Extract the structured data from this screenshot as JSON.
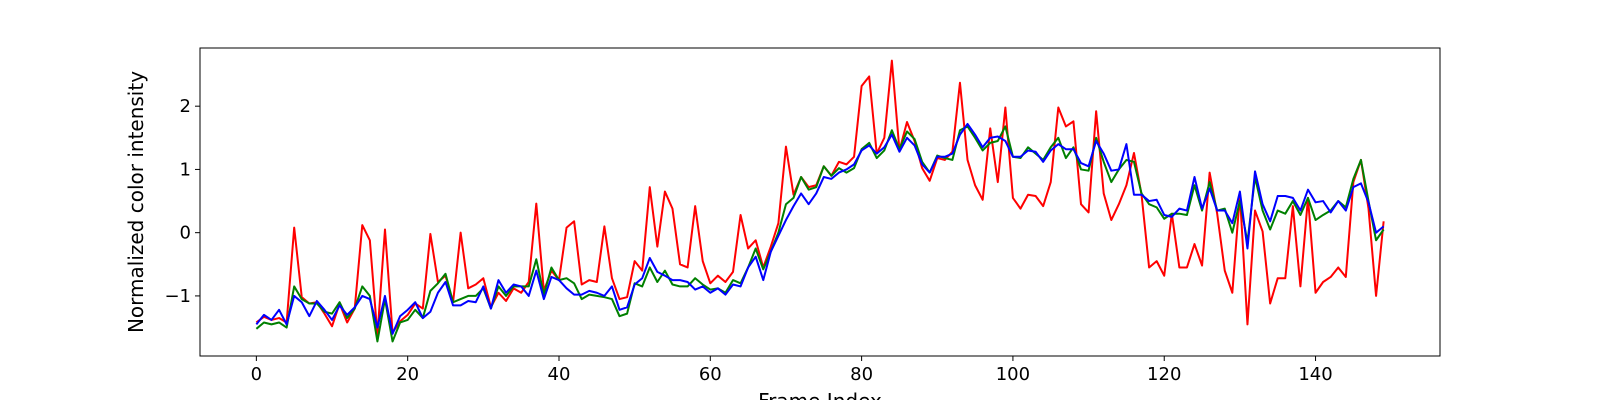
{
  "chart_data": {
    "type": "line",
    "title": "",
    "xlabel": "Frame Index",
    "ylabel": "Normalized color intensity",
    "xlim": [
      -7.45,
      156.45
    ],
    "ylim": [
      -1.95,
      2.92
    ],
    "xticks": [
      0,
      20,
      40,
      60,
      80,
      100,
      120,
      140
    ],
    "yticks": [
      -1,
      0,
      1,
      2
    ],
    "xtick_labels": [
      "0",
      "20",
      "40",
      "60",
      "80",
      "100",
      "120",
      "140"
    ],
    "ytick_labels": [
      "−1",
      "0",
      "1",
      "2"
    ],
    "grid": false,
    "legend": "none",
    "x": [
      0,
      1,
      2,
      3,
      4,
      5,
      6,
      7,
      8,
      9,
      10,
      11,
      12,
      13,
      14,
      15,
      16,
      17,
      18,
      19,
      20,
      21,
      22,
      23,
      24,
      25,
      26,
      27,
      28,
      29,
      30,
      31,
      32,
      33,
      34,
      35,
      36,
      37,
      38,
      39,
      40,
      41,
      42,
      43,
      44,
      45,
      46,
      47,
      48,
      49,
      50,
      51,
      52,
      53,
      54,
      55,
      56,
      57,
      58,
      59,
      60,
      61,
      62,
      63,
      64,
      65,
      66,
      67,
      68,
      69,
      70,
      71,
      72,
      73,
      74,
      75,
      76,
      77,
      78,
      79,
      80,
      81,
      82,
      83,
      84,
      85,
      86,
      87,
      88,
      89,
      90,
      91,
      92,
      93,
      94,
      95,
      96,
      97,
      98,
      99,
      100,
      101,
      102,
      103,
      104,
      105,
      106,
      107,
      108,
      109,
      110,
      111,
      112,
      113,
      114,
      115,
      116,
      117,
      118,
      119,
      120,
      121,
      122,
      123,
      124,
      125,
      126,
      127,
      128,
      129,
      130,
      131,
      132,
      133,
      134,
      135,
      136,
      137,
      138,
      139,
      140,
      141,
      142,
      143,
      144,
      145,
      146,
      147,
      148,
      149
    ],
    "series": [
      {
        "color": "#ff0000",
        "values": [
          -1.42,
          -1.33,
          -1.38,
          -1.35,
          -1.42,
          0.08,
          -1.02,
          -1.12,
          -1.1,
          -1.28,
          -1.48,
          -1.12,
          -1.42,
          -1.2,
          0.12,
          -0.12,
          -1.62,
          0.05,
          -1.58,
          -1.4,
          -1.3,
          -1.12,
          -1.2,
          -0.02,
          -0.78,
          -0.68,
          -1.1,
          0.0,
          -0.88,
          -0.82,
          -0.72,
          -1.18,
          -0.95,
          -1.08,
          -0.88,
          -0.95,
          -0.78,
          0.46,
          -0.92,
          -0.6,
          -0.75,
          0.08,
          0.18,
          -0.82,
          -0.75,
          -0.78,
          0.1,
          -0.72,
          -1.05,
          -1.02,
          -0.45,
          -0.6,
          0.72,
          -0.22,
          0.65,
          0.38,
          -0.5,
          -0.55,
          0.42,
          -0.45,
          -0.8,
          -0.68,
          -0.78,
          -0.62,
          0.28,
          -0.25,
          -0.12,
          -0.55,
          -0.22,
          0.15,
          1.36,
          0.6,
          0.88,
          0.72,
          0.75,
          1.05,
          0.9,
          1.12,
          1.08,
          1.2,
          2.32,
          2.47,
          1.25,
          1.5,
          2.72,
          1.3,
          1.75,
          1.45,
          1.02,
          0.82,
          1.18,
          1.15,
          1.28,
          2.37,
          1.15,
          0.75,
          0.52,
          1.65,
          0.8,
          1.98,
          0.55,
          0.38,
          0.6,
          0.58,
          0.42,
          0.8,
          1.98,
          1.68,
          1.76,
          0.45,
          0.32,
          1.92,
          0.62,
          0.2,
          0.45,
          0.75,
          1.26,
          0.6,
          -0.55,
          -0.45,
          -0.68,
          0.3,
          -0.55,
          -0.55,
          -0.18,
          -0.52,
          0.95,
          0.3,
          -0.6,
          -0.95,
          0.6,
          -1.45,
          0.35,
          0.02,
          -1.12,
          -0.72,
          -0.72,
          0.42,
          -0.85,
          0.55,
          -0.95,
          -0.78,
          -0.7,
          -0.55,
          -0.7,
          0.8,
          1.15,
          0.38,
          -1.0,
          0.18
        ]
      },
      {
        "color": "#008000",
        "values": [
          -1.52,
          -1.42,
          -1.45,
          -1.42,
          -1.5,
          -0.85,
          -1.05,
          -1.12,
          -1.12,
          -1.25,
          -1.28,
          -1.1,
          -1.35,
          -1.2,
          -0.85,
          -1.0,
          -1.72,
          -1.05,
          -1.72,
          -1.42,
          -1.38,
          -1.22,
          -1.35,
          -0.92,
          -0.8,
          -0.65,
          -1.1,
          -1.05,
          -1.0,
          -1.0,
          -0.88,
          -1.2,
          -0.85,
          -1.0,
          -0.85,
          -0.85,
          -0.85,
          -0.42,
          -0.98,
          -0.55,
          -0.75,
          -0.72,
          -0.8,
          -1.05,
          -0.98,
          -1.0,
          -1.02,
          -1.05,
          -1.32,
          -1.28,
          -0.8,
          -0.85,
          -0.55,
          -0.78,
          -0.6,
          -0.82,
          -0.85,
          -0.85,
          -0.72,
          -0.82,
          -0.9,
          -0.88,
          -0.95,
          -0.75,
          -0.8,
          -0.55,
          -0.25,
          -0.58,
          -0.3,
          0.0,
          0.45,
          0.55,
          0.88,
          0.68,
          0.72,
          1.05,
          0.9,
          1.02,
          0.95,
          1.02,
          1.32,
          1.42,
          1.18,
          1.3,
          1.62,
          1.32,
          1.6,
          1.48,
          1.12,
          0.95,
          1.22,
          1.18,
          1.15,
          1.62,
          1.68,
          1.5,
          1.3,
          1.42,
          1.45,
          1.68,
          1.2,
          1.18,
          1.35,
          1.25,
          1.15,
          1.35,
          1.5,
          1.18,
          1.35,
          1.0,
          0.98,
          1.5,
          1.12,
          0.8,
          1.0,
          1.15,
          1.12,
          0.62,
          0.45,
          0.4,
          0.22,
          0.3,
          0.3,
          0.28,
          0.75,
          0.35,
          0.8,
          0.35,
          0.38,
          0.0,
          0.5,
          -0.15,
          0.88,
          0.35,
          0.05,
          0.35,
          0.3,
          0.5,
          0.28,
          0.55,
          0.2,
          0.28,
          0.35,
          0.5,
          0.4,
          0.85,
          1.15,
          0.5,
          -0.12,
          0.05
        ]
      },
      {
        "color": "#0000ff",
        "values": [
          -1.45,
          -1.3,
          -1.38,
          -1.22,
          -1.45,
          -1.0,
          -1.1,
          -1.32,
          -1.08,
          -1.22,
          -1.38,
          -1.15,
          -1.3,
          -1.18,
          -1.0,
          -1.05,
          -1.5,
          -1.0,
          -1.6,
          -1.32,
          -1.22,
          -1.1,
          -1.35,
          -1.25,
          -0.95,
          -0.78,
          -1.15,
          -1.15,
          -1.08,
          -1.1,
          -0.85,
          -1.2,
          -0.75,
          -0.95,
          -0.82,
          -0.85,
          -1.0,
          -0.6,
          -1.05,
          -0.7,
          -0.75,
          -0.88,
          -0.98,
          -0.98,
          -0.92,
          -0.95,
          -1.0,
          -0.85,
          -1.22,
          -1.18,
          -0.82,
          -0.72,
          -0.4,
          -0.62,
          -0.68,
          -0.75,
          -0.75,
          -0.78,
          -0.9,
          -0.85,
          -0.95,
          -0.88,
          -0.98,
          -0.82,
          -0.85,
          -0.55,
          -0.38,
          -0.75,
          -0.3,
          -0.05,
          0.2,
          0.42,
          0.62,
          0.45,
          0.62,
          0.88,
          0.85,
          0.95,
          1.0,
          1.08,
          1.3,
          1.38,
          1.25,
          1.35,
          1.55,
          1.28,
          1.5,
          1.38,
          1.08,
          0.95,
          1.2,
          1.2,
          1.25,
          1.55,
          1.72,
          1.55,
          1.35,
          1.5,
          1.52,
          1.45,
          1.2,
          1.2,
          1.3,
          1.28,
          1.12,
          1.3,
          1.4,
          1.32,
          1.32,
          1.1,
          1.05,
          1.45,
          1.25,
          0.98,
          1.0,
          1.4,
          0.6,
          0.6,
          0.5,
          0.52,
          0.28,
          0.25,
          0.38,
          0.35,
          0.88,
          0.38,
          0.7,
          0.35,
          0.35,
          0.15,
          0.65,
          -0.25,
          0.97,
          0.45,
          0.18,
          0.58,
          0.58,
          0.55,
          0.35,
          0.68,
          0.48,
          0.5,
          0.32,
          0.5,
          0.35,
          0.72,
          0.78,
          0.48,
          0.0,
          0.1
        ]
      }
    ]
  }
}
